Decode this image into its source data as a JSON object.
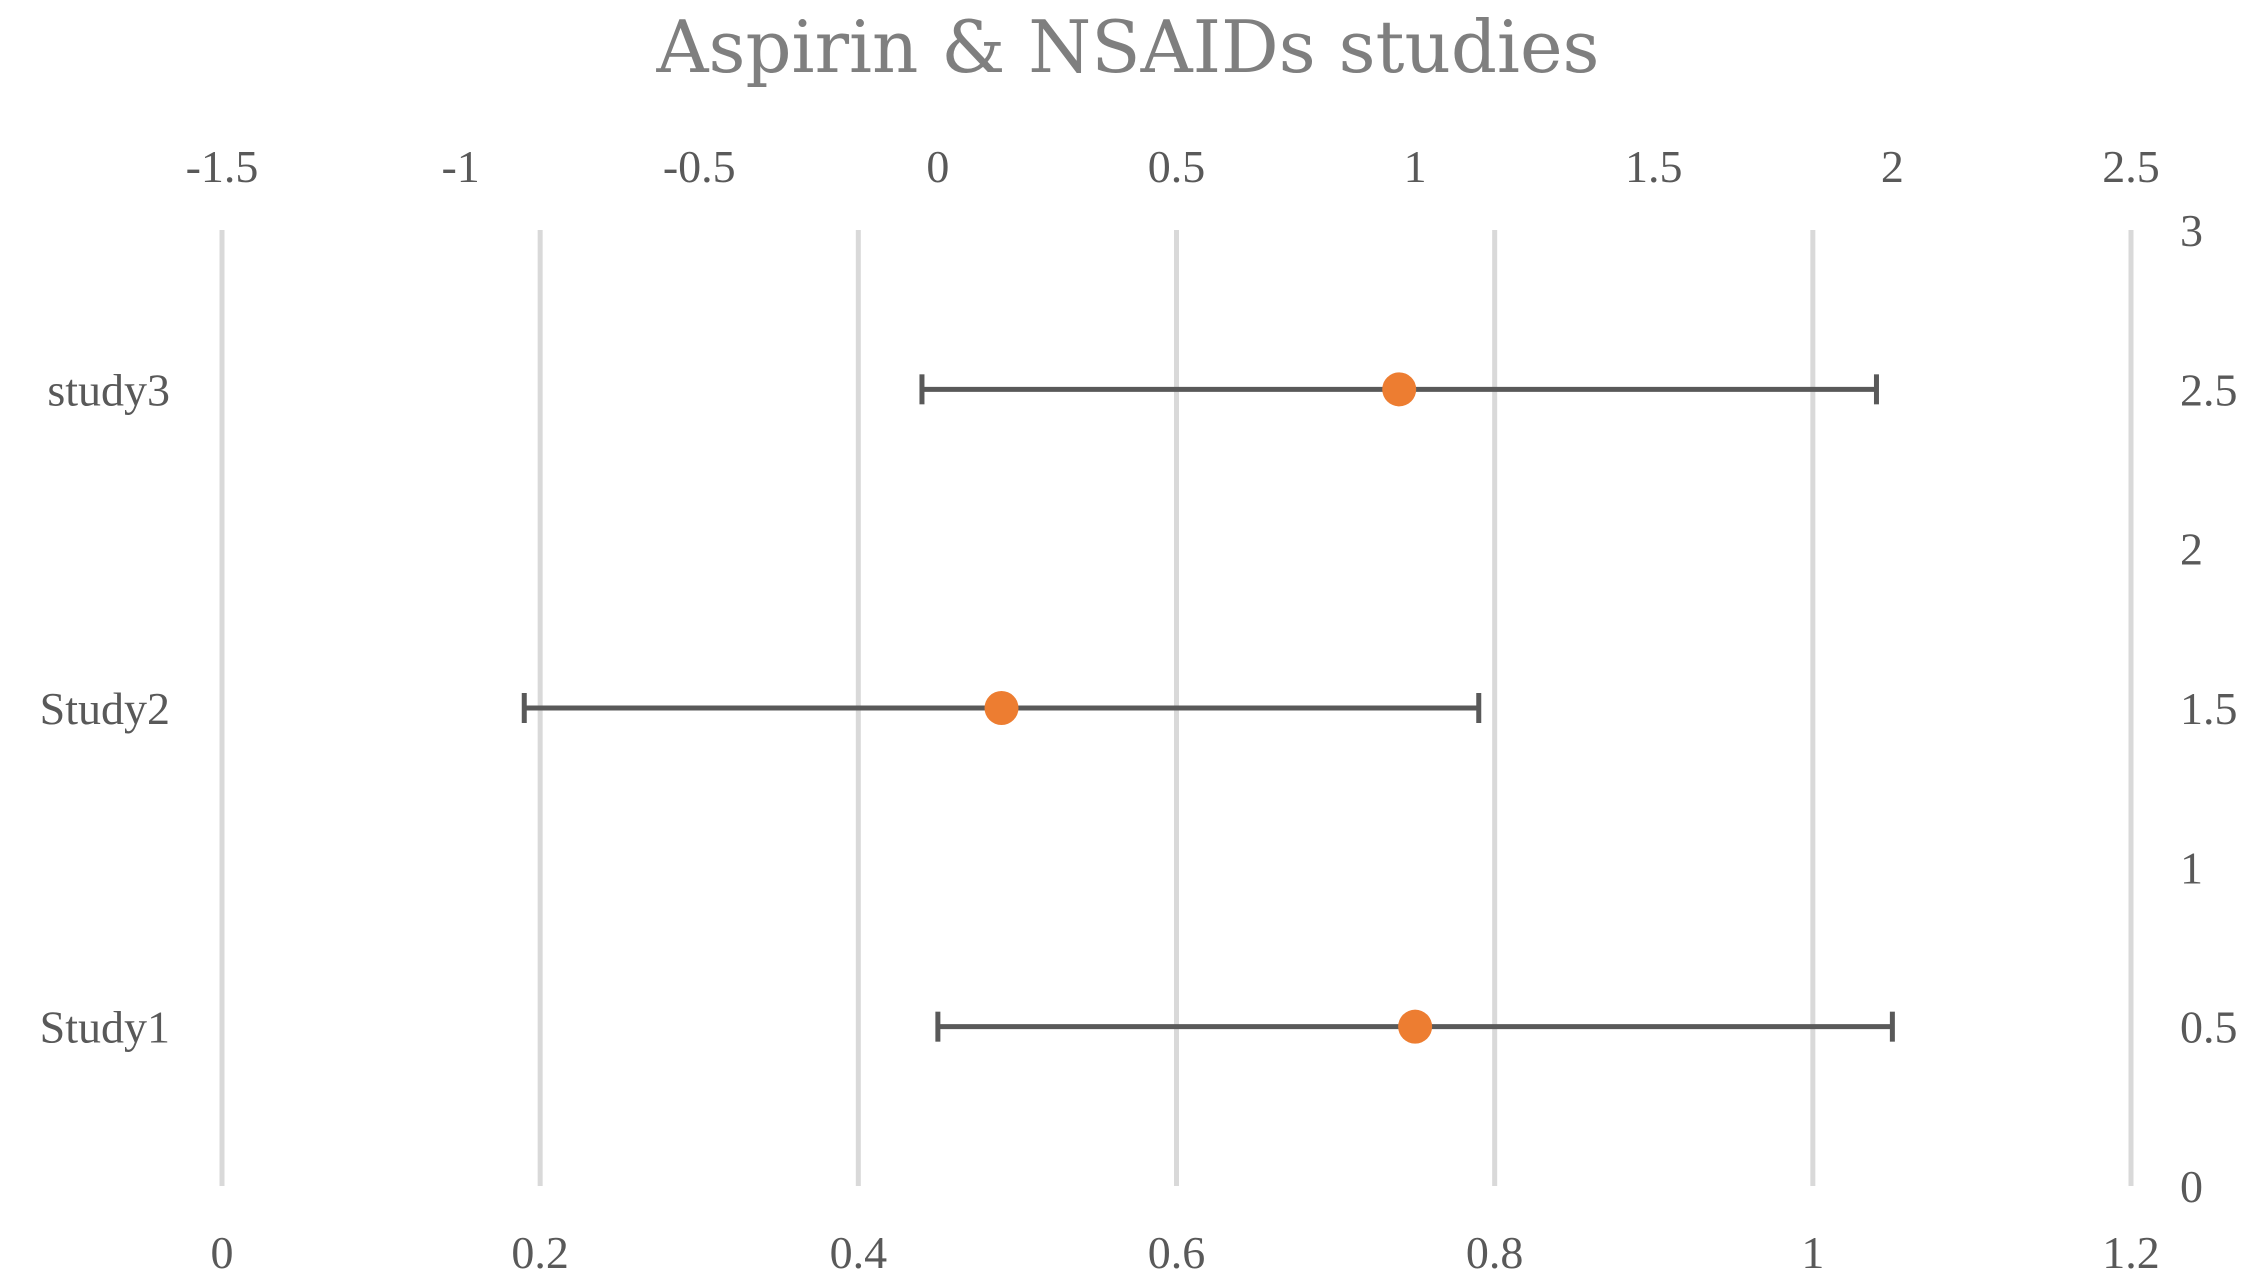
{
  "chart_data": {
    "type": "scatter",
    "title": "Aspirin & NSAIDs studies",
    "colors": {
      "point": "#ED7D31",
      "error_bar": "#595959",
      "grid": "#D9D9D9",
      "title": "#7F7F7F",
      "text": "#595959"
    },
    "x_bottom": {
      "range": [
        0,
        1.2
      ],
      "ticks": [
        "0",
        "0.2",
        "0.4",
        "0.6",
        "0.8",
        "1",
        "1.2"
      ]
    },
    "x_top": {
      "range": [
        -1.5,
        2.5
      ],
      "ticks": [
        "-1.5",
        "-1",
        "-0.5",
        "0",
        "0.5",
        "1",
        "1.5",
        "2",
        "2.5"
      ]
    },
    "y_right": {
      "range": [
        0,
        3
      ],
      "ticks": [
        "0",
        "0.5",
        "1",
        "1.5",
        "2",
        "2.5",
        "3"
      ]
    },
    "grid": "vertical",
    "categories": [
      "Study1",
      "Study2",
      "study3"
    ],
    "series": [
      {
        "points": [
          {
            "label": "Study1",
            "y": 0.5,
            "x": 0.75,
            "lower": 0.45,
            "upper": 1.05
          },
          {
            "label": "Study2",
            "y": 1.5,
            "x": 0.49,
            "lower": 0.19,
            "upper": 0.79
          },
          {
            "label": "study3",
            "y": 2.5,
            "x": 0.74,
            "lower": 0.44,
            "upper": 1.04
          }
        ]
      }
    ]
  }
}
